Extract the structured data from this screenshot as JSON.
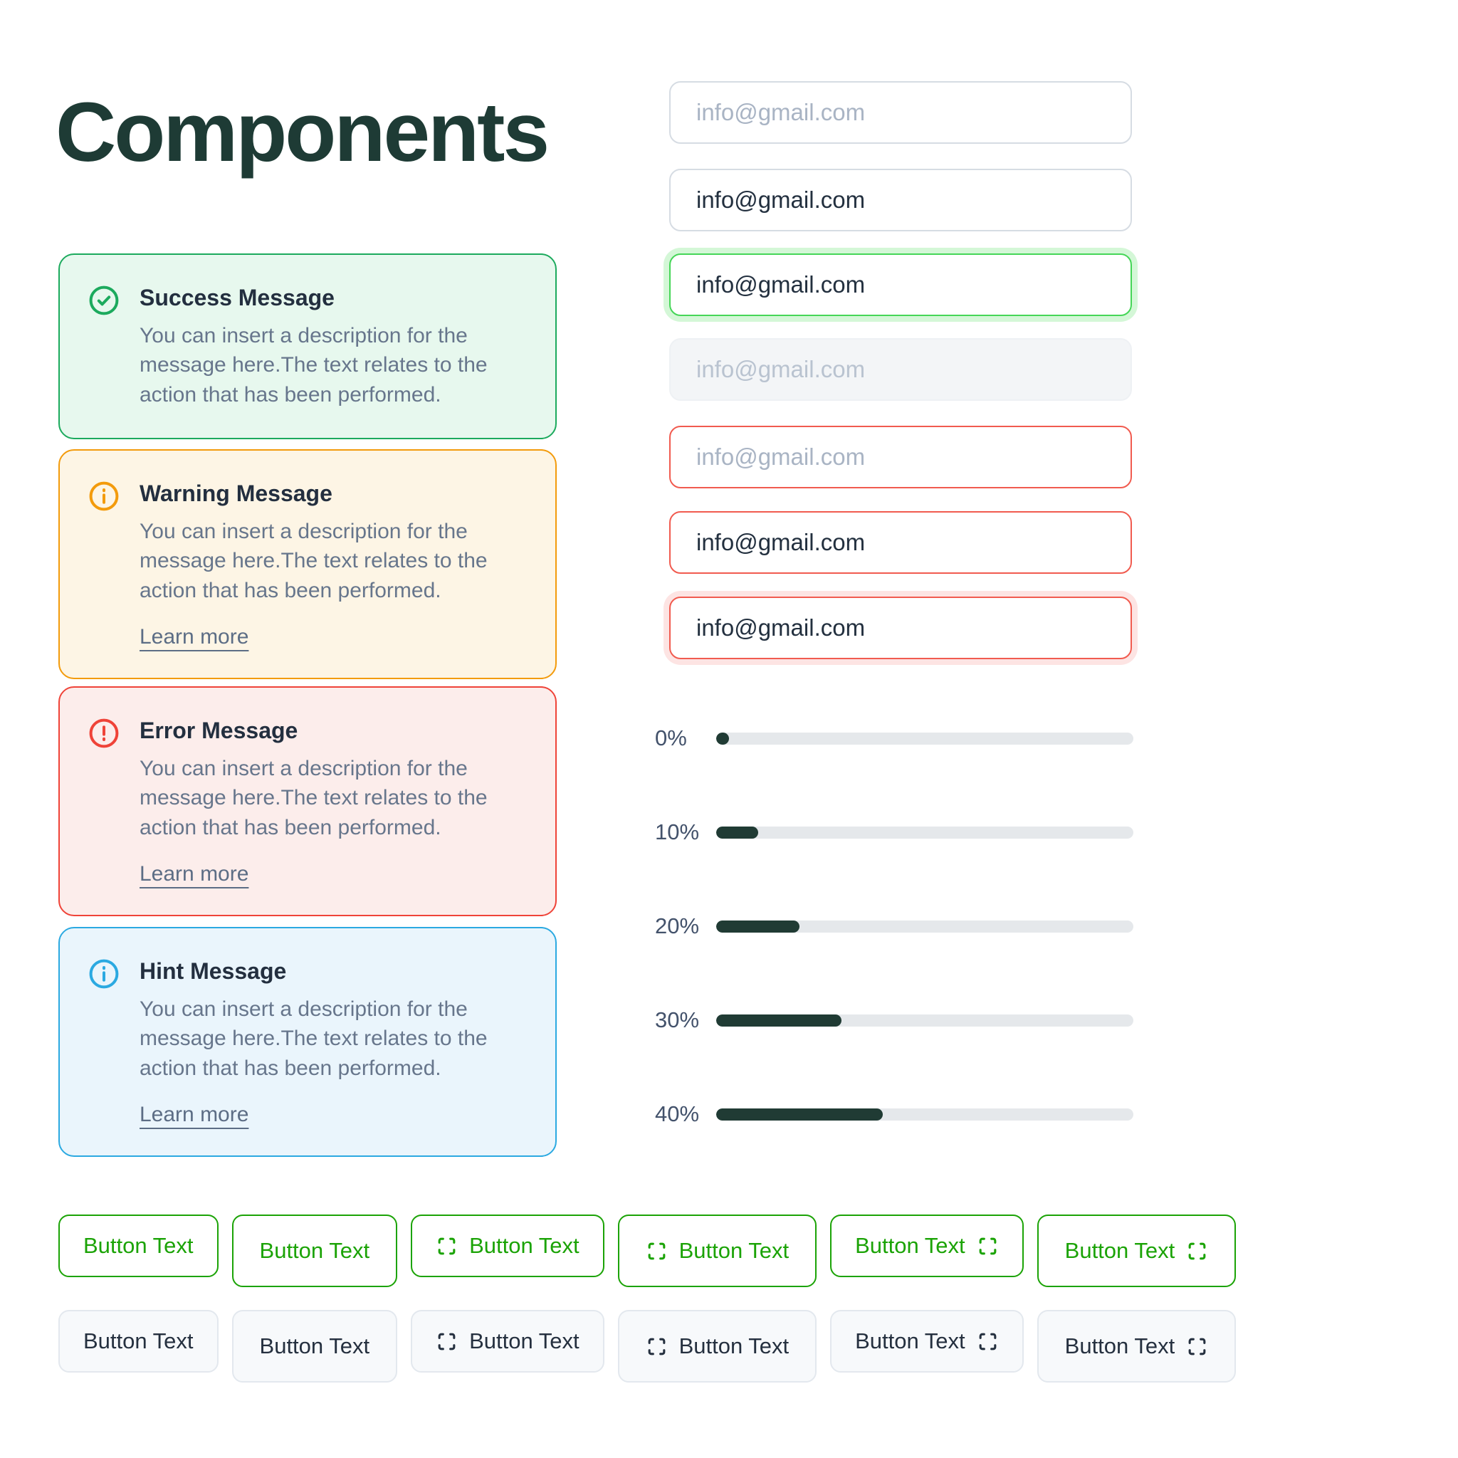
{
  "page": {
    "title": "Components"
  },
  "messages": [
    {
      "title": "Success Message",
      "description": "You can insert a description for the message here.The text relates to the action that has been performed.",
      "icon": "check-circle-icon",
      "accent": "#1CAA5D",
      "background": "#E7F8EE"
    },
    {
      "title": "Warning Message",
      "description": "You can insert a description for the message here.The text relates to the action that has been performed.",
      "link_label": "Learn more",
      "icon": "info-circle-icon",
      "accent": "#F39B0C",
      "background": "#FDF5E5"
    },
    {
      "title": "Error Message",
      "description": "You can insert a description for the message here.The text relates to the action that has been performed.",
      "link_label": "Learn more",
      "icon": "alert-circle-icon",
      "accent": "#EF4338",
      "background": "#FCEDEB"
    },
    {
      "title": "Hint Message",
      "description": "You can insert a description for the message here.The text relates to the action that has been performed.",
      "link_label": "Learn more",
      "icon": "info-circle-icon",
      "accent": "#2BA9E1",
      "background": "#EAF5FC"
    }
  ],
  "inputs": [
    {
      "state": "default",
      "placeholder": "info@gmail.com"
    },
    {
      "state": "filled",
      "value": "info@gmail.com"
    },
    {
      "state": "success-focused",
      "value": "info@gmail.com"
    },
    {
      "state": "disabled",
      "placeholder": "info@gmail.com"
    },
    {
      "state": "error",
      "placeholder": "info@gmail.com"
    },
    {
      "state": "error-filled",
      "value": "info@gmail.com"
    },
    {
      "state": "error-focused",
      "value": "info@gmail.com"
    }
  ],
  "progress": {
    "items": [
      {
        "label": "0%",
        "percent": 0
      },
      {
        "label": "10%",
        "percent": 10
      },
      {
        "label": "20%",
        "percent": 20
      },
      {
        "label": "30%",
        "percent": 30
      },
      {
        "label": "40%",
        "percent": 40
      }
    ]
  },
  "buttons": {
    "label": "Button Text",
    "icon": "scan-icon"
  },
  "colors": {
    "title_text": "#1E3B35",
    "body_text": "#67768C",
    "heading_text": "#232F3F",
    "success_green": "#1CAA5D",
    "warning_orange": "#F39B0C",
    "error_red": "#EF4338",
    "hint_blue": "#2BA9E1",
    "input_error_border": "#F15B4F",
    "input_focus_green": "#45D657",
    "primary_button_green": "#1BA306",
    "progress_fill": "#203B34",
    "progress_track": "#E5E8EB"
  }
}
